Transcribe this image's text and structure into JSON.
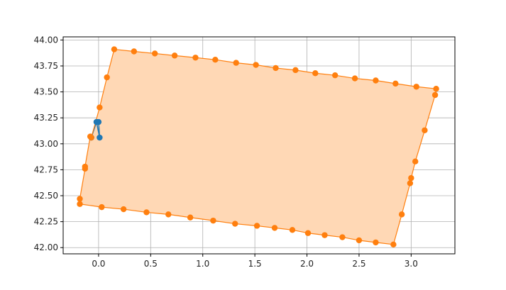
{
  "chart_data": {
    "type": "scatter",
    "title": "",
    "xlabel": "",
    "ylabel": "",
    "xlim": [
      -0.34,
      3.42
    ],
    "ylim": [
      41.94,
      44.03
    ],
    "grid": true,
    "x_ticks": [
      0.0,
      0.5,
      1.0,
      1.5,
      2.0,
      2.5,
      3.0
    ],
    "x_tick_labels": [
      "0.0",
      "0.5",
      "1.0",
      "1.5",
      "2.0",
      "2.5",
      "3.0"
    ],
    "y_ticks": [
      42.0,
      42.25,
      42.5,
      42.75,
      43.0,
      43.25,
      43.5,
      43.75,
      44.0
    ],
    "y_tick_labels": [
      "42.00",
      "42.25",
      "42.50",
      "42.75",
      "43.00",
      "43.25",
      "43.50",
      "43.75",
      "44.00"
    ],
    "series": [
      {
        "color": "#1f77b4",
        "kind": "line-with-markers",
        "x": [
          -0.07,
          -0.02,
          0.0,
          0.01,
          -0.02,
          -0.07
        ],
        "y": [
          43.06,
          43.21,
          43.21,
          43.06,
          43.21,
          43.06
        ]
      },
      {
        "color": "#ff7f0e",
        "fill_color": "#ffd8b5",
        "kind": "polygon-with-markers",
        "x": [
          0.15,
          0.34,
          0.54,
          0.73,
          0.93,
          1.12,
          1.32,
          1.51,
          1.7,
          1.89,
          2.08,
          2.27,
          2.46,
          2.66,
          2.85,
          3.05,
          3.24,
          3.23,
          3.13,
          3.04,
          3.0,
          2.99,
          2.91,
          2.83,
          2.66,
          2.5,
          2.34,
          2.17,
          2.01,
          1.86,
          1.69,
          1.52,
          1.31,
          1.1,
          0.88,
          0.67,
          0.46,
          0.24,
          0.03,
          -0.18,
          -0.18,
          -0.13,
          -0.13,
          -0.08,
          -0.07,
          0.01,
          0.08
        ],
        "y": [
          43.91,
          43.89,
          43.87,
          43.85,
          43.83,
          43.81,
          43.78,
          43.76,
          43.73,
          43.71,
          43.68,
          43.66,
          43.63,
          43.61,
          43.58,
          43.55,
          43.53,
          43.47,
          43.13,
          42.83,
          42.67,
          42.62,
          42.32,
          42.03,
          42.05,
          42.07,
          42.1,
          42.12,
          42.14,
          42.17,
          42.19,
          42.21,
          42.23,
          42.26,
          42.29,
          42.32,
          42.34,
          42.37,
          42.39,
          42.42,
          42.47,
          42.76,
          42.78,
          43.07,
          43.06,
          43.35,
          43.64
        ]
      }
    ]
  }
}
